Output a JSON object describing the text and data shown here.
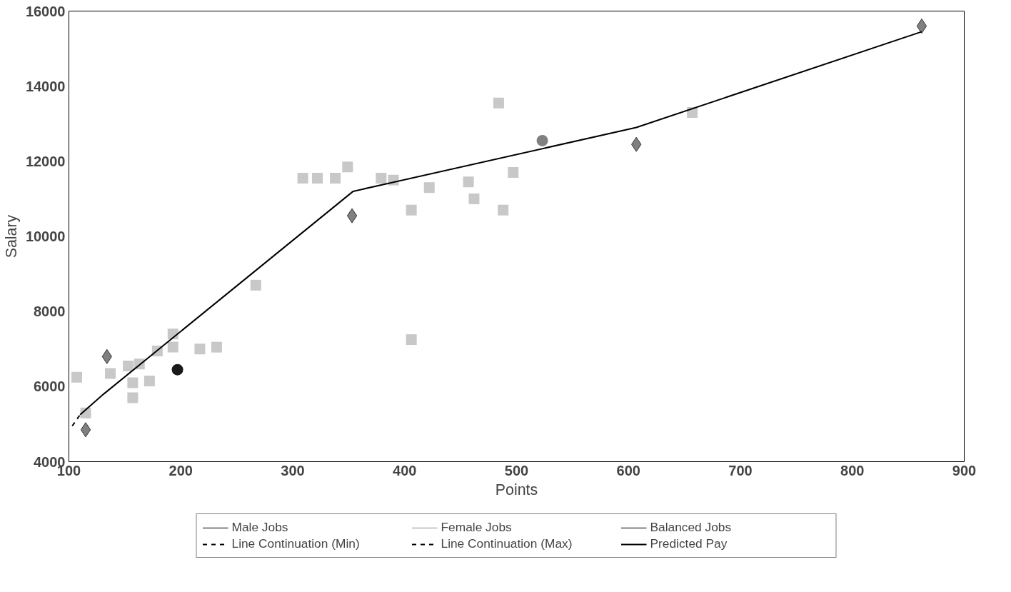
{
  "chart_data": {
    "type": "scatter",
    "xlabel": "Points",
    "ylabel": "Salary",
    "xlim": [
      100,
      900
    ],
    "xticks": [
      100,
      200,
      300,
      400,
      500,
      600,
      700,
      800,
      900
    ],
    "ylim": [
      4000,
      16000
    ],
    "yticks": [
      4000,
      6000,
      8000,
      10000,
      12000,
      14000,
      16000
    ],
    "grid": false,
    "legend": "bottom",
    "series": [
      {
        "name": "Male Jobs",
        "marker": "diamond",
        "color": "#808080",
        "x": [
          115,
          134,
          353,
          607,
          862
        ],
        "values": [
          4850,
          6800,
          10550,
          12450,
          15600
        ]
      },
      {
        "name": "Female Jobs",
        "marker": "square",
        "color": "#c8c8c8",
        "x": [
          107,
          115,
          137,
          153,
          157,
          163,
          157,
          172,
          193,
          193,
          179,
          217,
          232,
          267,
          309,
          322,
          338,
          349,
          379,
          390,
          422,
          406,
          457,
          462,
          484,
          488,
          497,
          406,
          657
        ],
        "values": [
          6250,
          5300,
          6350,
          6550,
          6100,
          6600,
          5700,
          6150,
          7400,
          7050,
          6950,
          7000,
          7050,
          8700,
          11550,
          11550,
          11550,
          11850,
          11550,
          11500,
          11300,
          10700,
          11450,
          11000,
          13550,
          10700,
          11700,
          7250,
          13300
        ]
      },
      {
        "name": "Balanced Jobs",
        "marker": "circle",
        "color": "#808080",
        "colors": [
          "#1a1a1a",
          "#808080"
        ],
        "x": [
          197,
          523
        ],
        "values": [
          6450,
          12550
        ]
      },
      {
        "name": "Predicted Pay",
        "type": "line",
        "line_style": "solid",
        "color": "#000000",
        "x": [
          110,
          131,
          354,
          607,
          862
        ],
        "values": [
          5250,
          5800,
          11200,
          12900,
          15450
        ]
      },
      {
        "name": "Line Continuation (Min)",
        "type": "line",
        "line_style": "dashed",
        "color": "#000000",
        "x": [
          103,
          110
        ],
        "values": [
          4950,
          5250
        ]
      },
      {
        "name": "Line Continuation (Max)",
        "type": "line",
        "line_style": "dashed",
        "color": "#000000"
      }
    ]
  }
}
